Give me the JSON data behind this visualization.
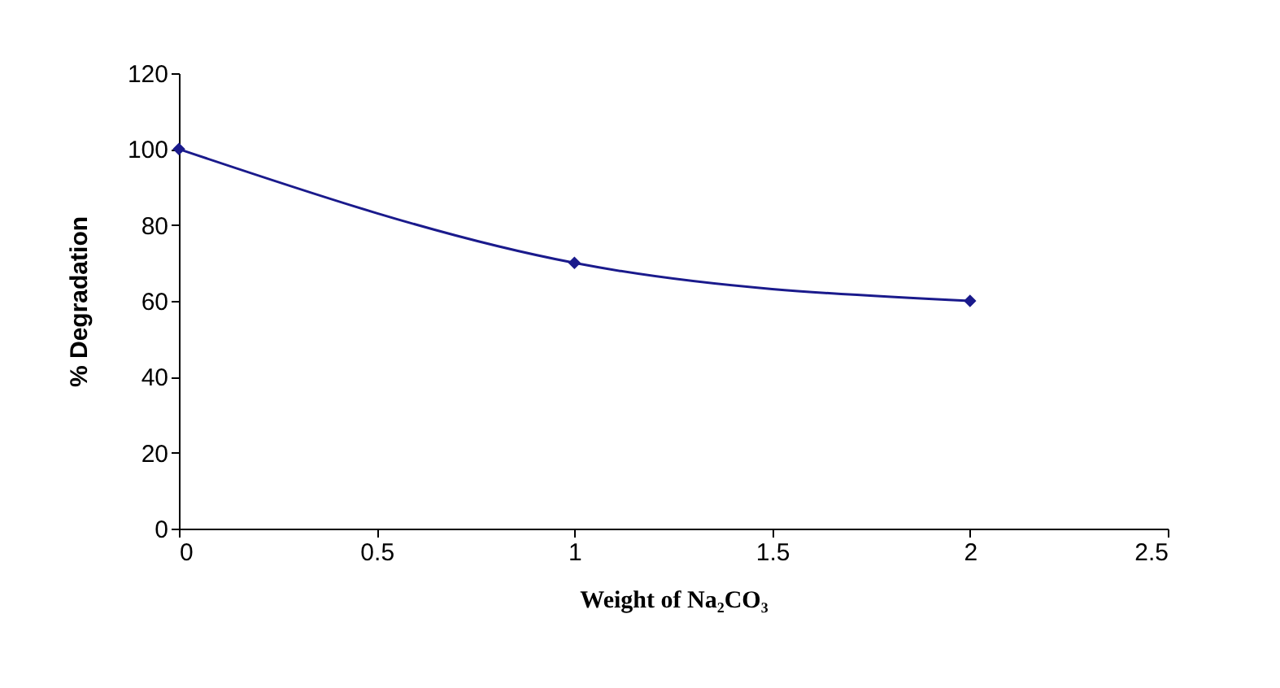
{
  "chart_data": {
    "type": "line",
    "xlabel": "Weight of Na₂CO₃",
    "ylabel": "% Degradation",
    "x": [
      0,
      1,
      2
    ],
    "series": [
      {
        "color": "#1a1a8c",
        "values": [
          100,
          70,
          60
        ]
      }
    ],
    "xlim": [
      0,
      2.5
    ],
    "xticks": [
      0,
      0.5,
      1,
      1.5,
      2,
      2.5
    ],
    "ylim": [
      0,
      120
    ],
    "yticks": [
      0,
      20,
      40,
      60,
      80,
      100,
      120
    ],
    "grid": false,
    "legend": false,
    "marker": "diamond",
    "line_style": "solid"
  }
}
